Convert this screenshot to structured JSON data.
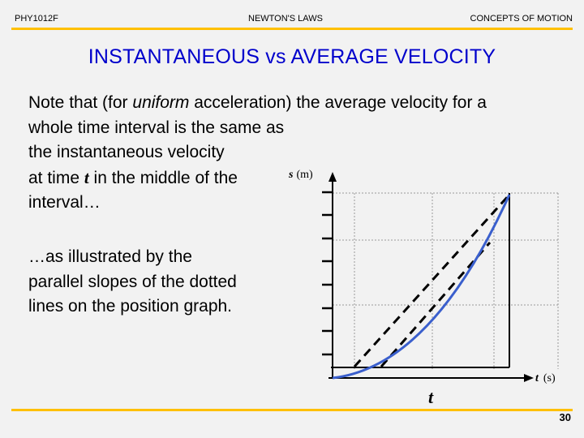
{
  "header": {
    "left": "PHY1012F",
    "center": "NEWTON'S LAWS",
    "right": "CONCEPTS OF MOTION"
  },
  "title": "INSTANTANEOUS vs AVERAGE VELOCITY",
  "paragraph1": {
    "line1_a": "Note that (for ",
    "line1_italic": "uniform",
    "line1_b": " acceleration) the average velocity for a",
    "line2": "whole time interval is the same as",
    "line3": "the instantaneous velocity",
    "line4_a": "at time ",
    "line4_t": "t",
    "line4_b": " in the middle of the",
    "line5": "interval…"
  },
  "paragraph2": {
    "line1": "…as illustrated by the",
    "line2": "parallel slopes of the dotted",
    "line3": "lines on the position graph."
  },
  "graph": {
    "y_axis_symbol": "s",
    "y_axis_unit": "(m)",
    "x_axis_symbol": "t",
    "x_axis_unit": "(s)",
    "midpoint_label": "t",
    "colors": {
      "curve": "#3a5fcd",
      "axes": "#000000",
      "grid": "#999999"
    }
  },
  "page_number": "30"
}
